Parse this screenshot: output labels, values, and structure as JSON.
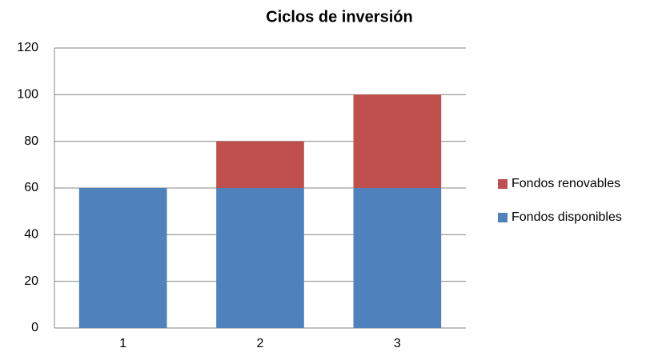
{
  "chart_data": {
    "type": "stacked_bar",
    "title": "Ciclos de inversión",
    "categories": [
      "1",
      "2",
      "3"
    ],
    "series": [
      {
        "name": "Fondos disponibles",
        "color": "#4f81bd",
        "values": [
          60,
          60,
          60
        ]
      },
      {
        "name": "Fondos renovables",
        "color": "#c0504d",
        "values": [
          0,
          20,
          40
        ]
      }
    ],
    "ylim": [
      0,
      120
    ],
    "yticks": [
      0,
      20,
      40,
      60,
      80,
      100,
      120
    ],
    "grid": true,
    "legend": "right"
  }
}
